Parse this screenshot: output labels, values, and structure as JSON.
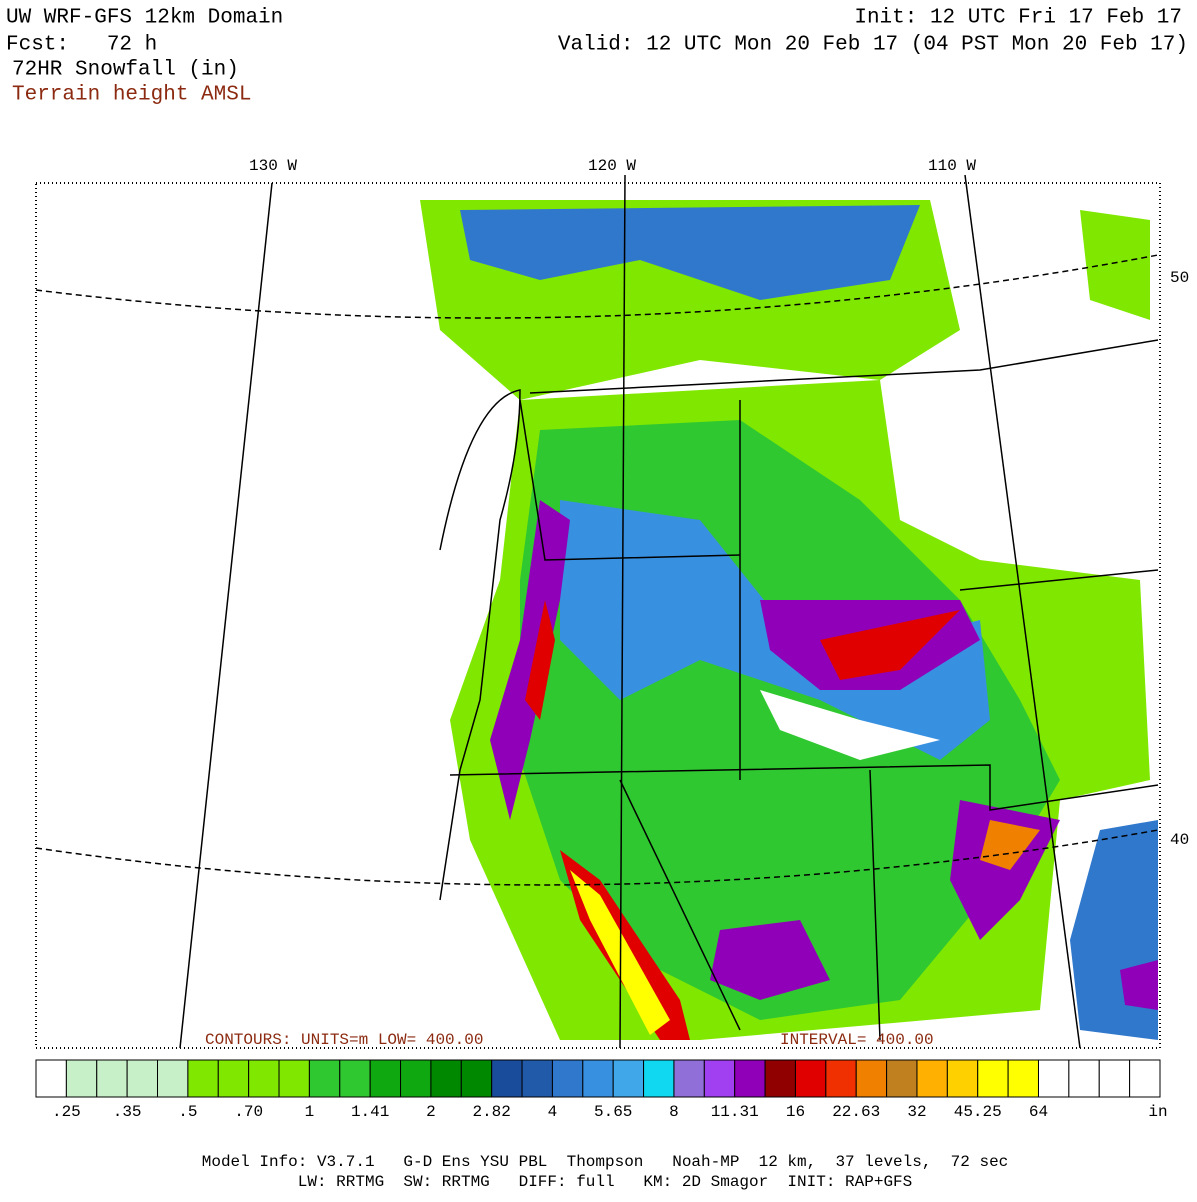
{
  "header": {
    "title": "UW WRF-GFS 12km Domain",
    "forecast": "Fcst:   72 h",
    "field": "72HR Snowfall (in)",
    "overlay": "Terrain height AMSL",
    "init": "Init: 12 UTC Fri 17 Feb 17",
    "valid": "Valid: 12 UTC Mon 20 Feb 17 (04 PST Mon 20 Feb 17)"
  },
  "map": {
    "lon_labels": [
      "130 W",
      "120 W",
      "110 W"
    ],
    "lat_labels": [
      "50",
      "40"
    ],
    "contour_note": "CONTOURS: UNITS=m  LOW= 400.00",
    "contour_interval": "INTERVAL= 400.00"
  },
  "colorbar": {
    "labels": [
      ".25",
      ".35",
      ".5",
      ".70",
      "1",
      "1.41",
      "2",
      "2.82",
      "4",
      "5.65",
      "8",
      "11.31",
      "16",
      "22.63",
      "32",
      "45.25",
      "64"
    ],
    "unit": "in",
    "colors": [
      "#ffffff",
      "#c8f0c8",
      "#c8f0c8",
      "#c8f0c8",
      "#c8f0c8",
      "#80e800",
      "#80e800",
      "#80e800",
      "#80e800",
      "#30c830",
      "#30c830",
      "#10a810",
      "#10a810",
      "#008800",
      "#008800",
      "#1a4c9c",
      "#205aa8",
      "#3078cc",
      "#3890e0",
      "#40a8e8",
      "#10d8f0",
      "#9070d8",
      "#a040f0",
      "#9000b8",
      "#900000",
      "#e00000",
      "#f03000",
      "#f08000",
      "#c08020",
      "#ffb000",
      "#ffd000",
      "#ffff00",
      "#ffff00",
      "#ffffff",
      "#ffffff",
      "#ffffff",
      "#ffffff"
    ]
  },
  "footer": {
    "line1": "Model Info: V3.7.1   G-D Ens YSU PBL  Thompson   Noah-MP  12 km,  37 levels,  72 sec",
    "line2": "LW: RRTMG  SW: RRTMG   DIFF: full   KM: 2D Smagor  INIT: RAP+GFS"
  }
}
